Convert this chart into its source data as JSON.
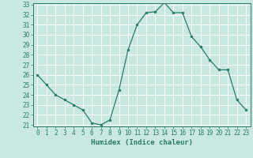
{
  "x": [
    0,
    1,
    2,
    3,
    4,
    5,
    6,
    7,
    8,
    9,
    10,
    11,
    12,
    13,
    14,
    15,
    16,
    17,
    18,
    19,
    20,
    21,
    22,
    23
  ],
  "y": [
    26,
    25,
    24,
    23.5,
    23,
    22.5,
    21.2,
    21.0,
    21.5,
    24.5,
    28.5,
    31.0,
    32.2,
    32.3,
    33.2,
    32.2,
    32.2,
    29.8,
    28.8,
    27.5,
    26.5,
    26.5,
    23.5,
    22.5
  ],
  "xlabel": "Humidex (Indice chaleur)",
  "line_color": "#2a7a6a",
  "marker_color": "#2a7a6a",
  "bg_color": "#c8e8e0",
  "grid_color": "#ffffff",
  "ylim": [
    21,
    33
  ],
  "xlim": [
    -0.5,
    23.5
  ],
  "yticks": [
    21,
    22,
    23,
    24,
    25,
    26,
    27,
    28,
    29,
    30,
    31,
    32,
    33
  ],
  "xticks": [
    0,
    1,
    2,
    3,
    4,
    5,
    6,
    7,
    8,
    9,
    10,
    11,
    12,
    13,
    14,
    15,
    16,
    17,
    18,
    19,
    20,
    21,
    22,
    23
  ],
  "xtick_labels": [
    "0",
    "1",
    "2",
    "3",
    "4",
    "5",
    "6",
    "7",
    "8",
    "9",
    "10",
    "11",
    "12",
    "13",
    "14",
    "15",
    "16",
    "17",
    "18",
    "19",
    "20",
    "21",
    "22",
    "23"
  ],
  "tick_fontsize": 5.5,
  "xlabel_fontsize": 6.5
}
